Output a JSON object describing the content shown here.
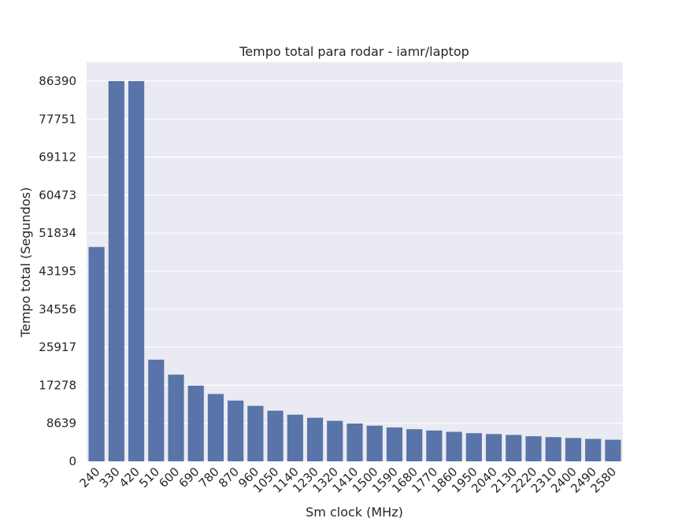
{
  "chart_data": {
    "type": "bar",
    "title": "Tempo total para rodar - iamr/laptop",
    "xlabel": "Sm clock (MHz)",
    "ylabel": "Tempo total (Segundos)",
    "categories": [
      "240",
      "330",
      "420",
      "510",
      "600",
      "690",
      "780",
      "870",
      "960",
      "1050",
      "1140",
      "1230",
      "1320",
      "1410",
      "1500",
      "1590",
      "1680",
      "1770",
      "1860",
      "1950",
      "2040",
      "2130",
      "2220",
      "2310",
      "2400",
      "2490",
      "2580"
    ],
    "values": [
      48700,
      86390,
      86390,
      23100,
      19700,
      17200,
      15300,
      13800,
      12600,
      11500,
      10600,
      9900,
      9200,
      8600,
      8100,
      7700,
      7300,
      7000,
      6700,
      6400,
      6200,
      6000,
      5700,
      5500,
      5300,
      5100,
      4900
    ],
    "yticks": [
      0,
      8639,
      17278,
      25917,
      34556,
      43195,
      51834,
      60473,
      69112,
      77751,
      86390
    ],
    "ylim": [
      0,
      86390
    ],
    "grid": true,
    "colors": {
      "bar": "#5874a8",
      "plot_background": "#eaeaf2",
      "grid": "#ffffff"
    }
  }
}
